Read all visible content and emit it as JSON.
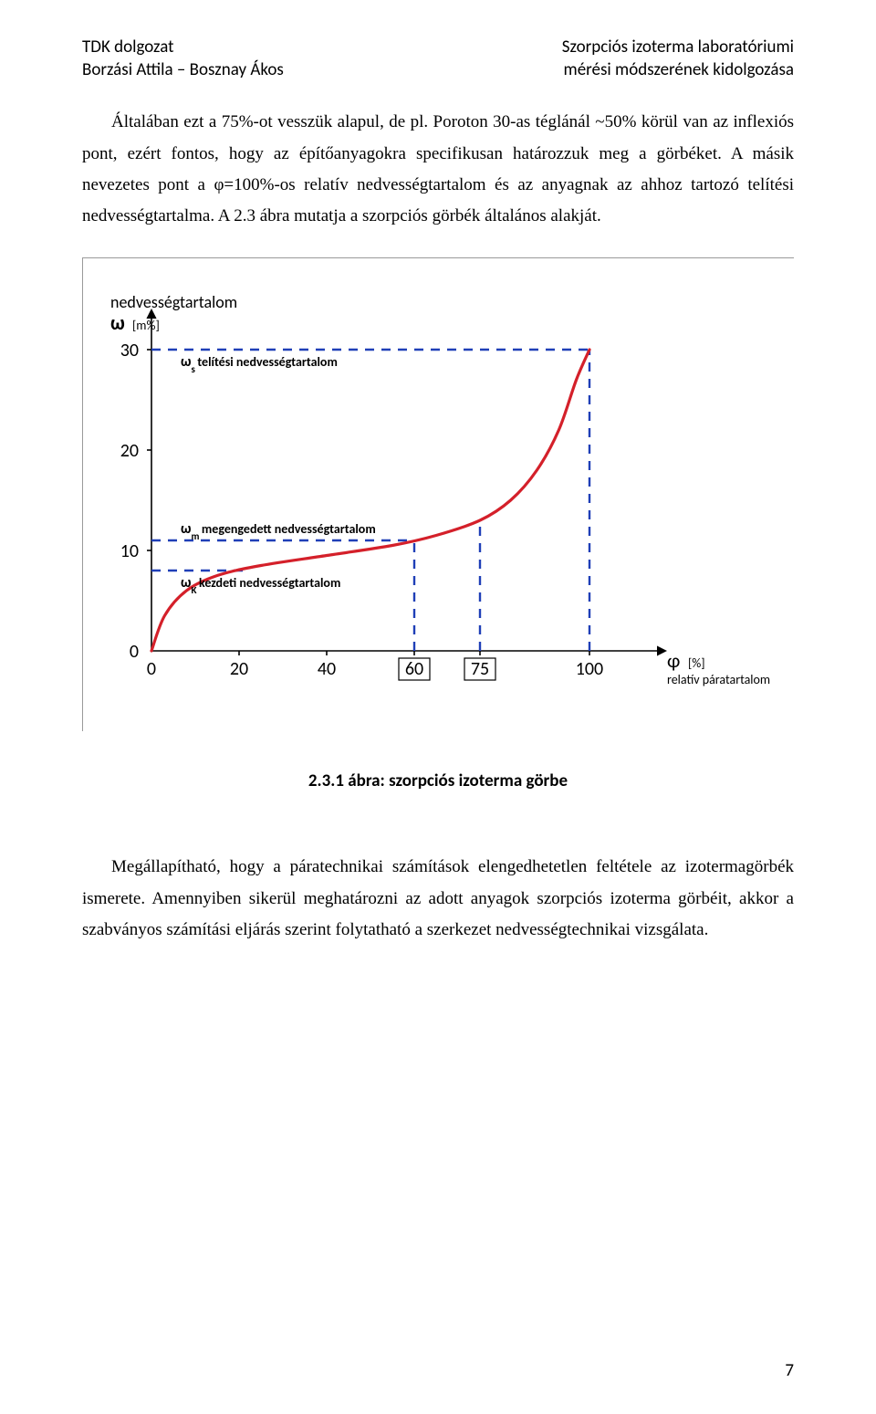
{
  "header": {
    "left_line1": "TDK dolgozat",
    "left_line2": "Borzási Attila – Bosznay Ákos",
    "right_line1": "Szorpciós izoterma laboratóriumi",
    "right_line2": "mérési módszerének kidolgozása"
  },
  "para1": "Általában ezt a 75%-ot vesszük alapul, de pl. Poroton 30-as téglánál ~50% körül van az inflexiós pont, ezért fontos, hogy az építőanyagokra specifikusan határozzuk meg a görbéket. A másik nevezetes pont a φ=100%-os relatív nedvességtartalom és az anyagnak az ahhoz tartozó telítési nedvességtartalma. A 2.3 ábra mutatja a szorpciós görbék általános alakját.",
  "para2": "Megállapítható, hogy a páratechnikai számítások elengedhetetlen feltétele az izotermagörbék ismerete. Amennyiben sikerül meghatározni az adott anyagok szorpciós izoterma görbéit, akkor a szabványos számítási eljárás szerint folytatható a szerkezet nedvességtechnikai vizsgálata.",
  "figure": {
    "caption": "2.3.1 ábra: szorpciós izoterma görbe",
    "y_title": "nedvességtartalom",
    "y_symbol": "ω",
    "y_unit": "[m%]",
    "x_symbol": "φ",
    "x_unit": "[%]",
    "x_subtitle": "relatív páratartalom",
    "y_ticks": [
      0,
      10,
      20,
      30
    ],
    "x_ticks": [
      0,
      20,
      40,
      60,
      75,
      100
    ],
    "x_boxed": [
      60,
      75
    ],
    "label_ws": "ωs telítési nedvességtartalom",
    "label_wm": "ωm megengedett nedvességtartalom",
    "label_wk": "ωK kezdeti nedvességtartalom",
    "curve_color": "#d4202a",
    "dash_color": "#1f3fb7",
    "axis_color": "#000000",
    "text_color": "#000000",
    "box_border": "#000000",
    "ws_y": 30,
    "wm_y": 11,
    "wk_y": 8,
    "vline_60_top_y": 11,
    "vline_75_top_y": 13,
    "curve_points": [
      [
        0,
        0
      ],
      [
        3,
        3.5
      ],
      [
        8,
        6
      ],
      [
        15,
        7.5
      ],
      [
        25,
        8.5
      ],
      [
        40,
        9.5
      ],
      [
        55,
        10.5
      ],
      [
        65,
        11.5
      ],
      [
        75,
        13
      ],
      [
        82,
        15
      ],
      [
        88,
        18
      ],
      [
        93,
        22
      ],
      [
        97,
        27
      ],
      [
        100,
        30
      ]
    ],
    "curve_width": 3.2,
    "dash_width": 2.4,
    "dash_pattern": "10 8",
    "axis_width": 1.6,
    "font_small": 14,
    "font_tick": 20,
    "font_axis_label": 18
  },
  "page_number": "7"
}
